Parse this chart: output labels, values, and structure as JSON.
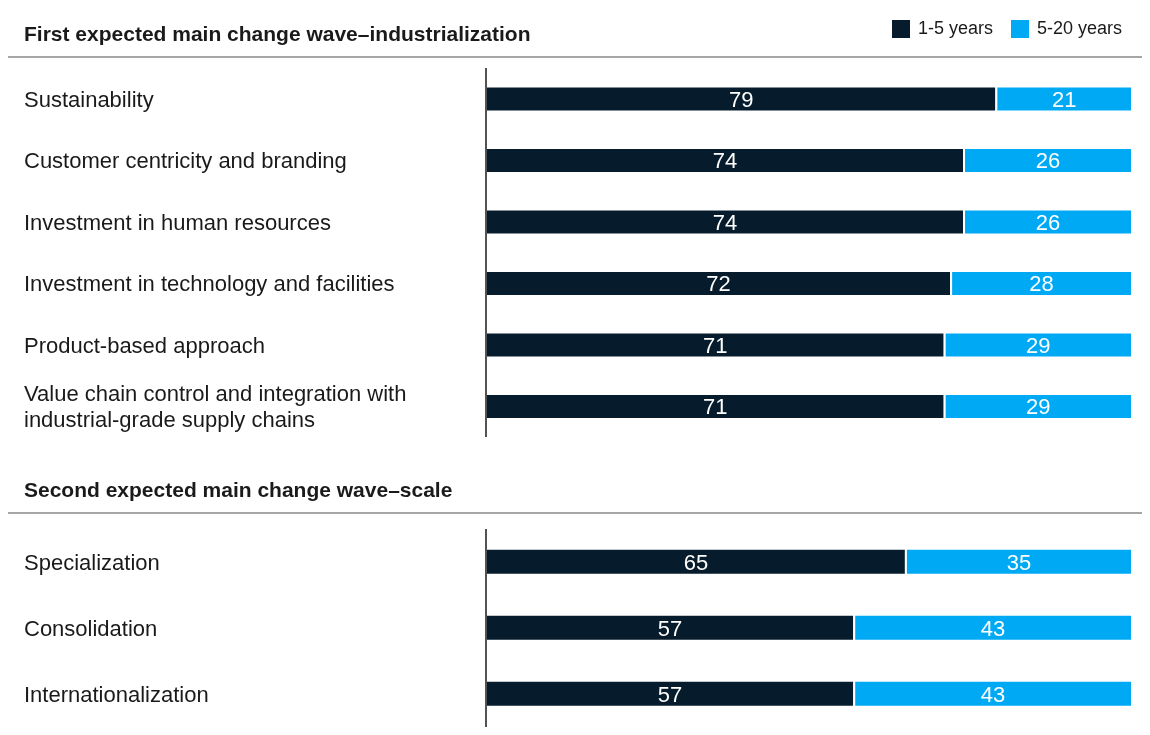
{
  "chart_data": [
    {
      "type": "bar",
      "orientation": "horizontal",
      "stacked": true,
      "title": "First expected main change wave–industrialization",
      "categories": [
        "Sustainability",
        "Customer centricity and branding",
        "Investment in human resources",
        "Investment in technology and facilities",
        "Product-based approach",
        "Value chain control and integration with industrial-grade supply chains"
      ],
      "series": [
        {
          "name": "1-5 years",
          "color": "#061c2c",
          "values": [
            79,
            74,
            74,
            72,
            71,
            71
          ]
        },
        {
          "name": "5-20 years",
          "color": "#00a9f4",
          "values": [
            21,
            26,
            26,
            28,
            29,
            29
          ]
        }
      ],
      "data_labels": true,
      "legend": "top right"
    },
    {
      "type": "bar",
      "orientation": "horizontal",
      "stacked": true,
      "title": "Second expected main change wave–scale",
      "categories": [
        "Specialization",
        "Consolidation",
        "Internationalization"
      ],
      "series": [
        {
          "color": "#061c2c",
          "values": [
            65,
            57,
            57
          ]
        },
        {
          "color": "#00a9f4",
          "values": [
            35,
            43,
            43
          ]
        }
      ],
      "data_labels": true
    }
  ]
}
